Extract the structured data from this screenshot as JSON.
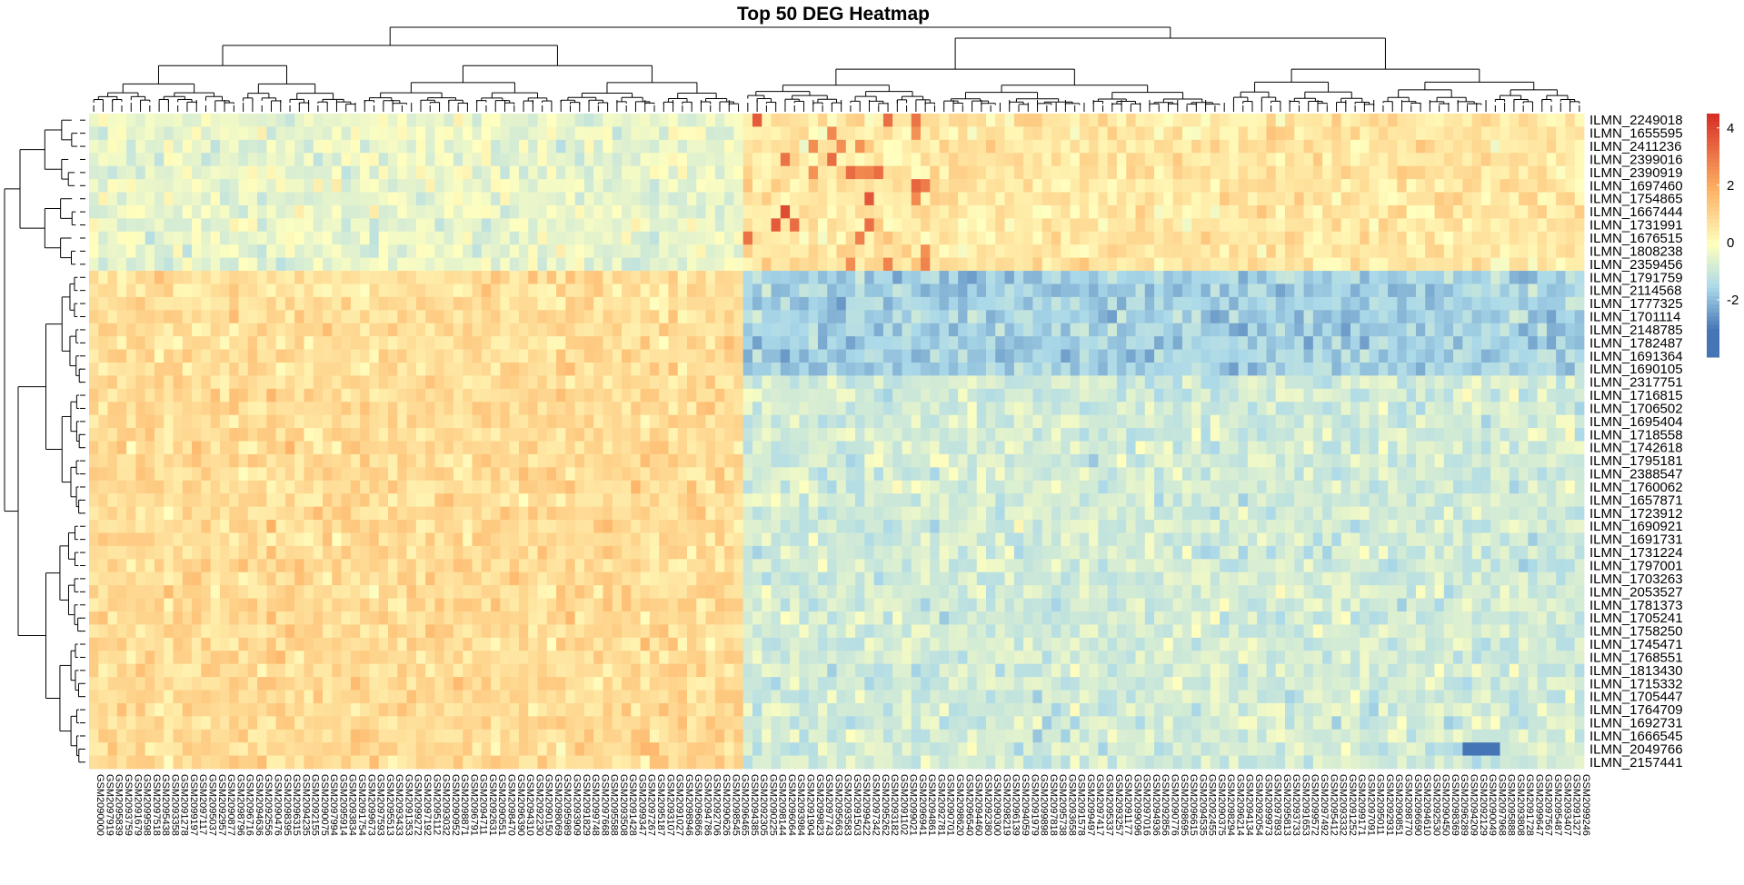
{
  "chart_data": {
    "type": "heatmap",
    "title": "Top 50 DEG Heatmap",
    "rows": [
      "ILMN_2249018",
      "ILMN_1655595",
      "ILMN_2411236",
      "ILMN_2399016",
      "ILMN_2390919",
      "ILMN_1697460",
      "ILMN_1754865",
      "ILMN_1667444",
      "ILMN_1731991",
      "ILMN_1676515",
      "ILMN_1808238",
      "ILMN_2359456",
      "ILMN_1791759",
      "ILMN_2114568",
      "ILMN_1777325",
      "ILMN_1701114",
      "ILMN_2148785",
      "ILMN_1782487",
      "ILMN_1691364",
      "ILMN_1690105",
      "ILMN_2317751",
      "ILMN_1716815",
      "ILMN_1706502",
      "ILMN_1695404",
      "ILMN_1718558",
      "ILMN_1742618",
      "ILMN_1795181",
      "ILMN_2388547",
      "ILMN_1760062",
      "ILMN_1657871",
      "ILMN_1723912",
      "ILMN_1690921",
      "ILMN_1691731",
      "ILMN_1731224",
      "ILMN_1797001",
      "ILMN_1703263",
      "ILMN_2053527",
      "ILMN_1781373",
      "ILMN_1705241",
      "ILMN_1758250",
      "ILMN_1745471",
      "ILMN_1768551",
      "ILMN_1813430",
      "ILMN_1715332",
      "ILMN_1705447",
      "ILMN_1764709",
      "ILMN_1692731",
      "ILMN_1666545",
      "ILMN_2049766",
      "ILMN_2157441"
    ],
    "column_count": 160,
    "column_label_prefix": "GSM",
    "groups": [
      {
        "columns": [
          0,
          70
        ],
        "block_values": [
          -0.4,
          0.8,
          0.9
        ]
      },
      {
        "columns": [
          70,
          160
        ],
        "block_values": [
          0.6,
          -1.6,
          -0.8
        ]
      }
    ],
    "row_blocks": [
      {
        "rows": [
          0,
          12
        ],
        "pattern": "mixed, elevated in right cluster"
      },
      {
        "rows": [
          12,
          20
        ],
        "pattern": "up-left / down-right"
      },
      {
        "rows": [
          20,
          50
        ],
        "pattern": "up-left / down-right (milder)"
      }
    ],
    "color_scale": {
      "min": -4,
      "max": 4.5,
      "stops": [
        {
          "value": -3,
          "color": "#4575b4"
        },
        {
          "value": -1.5,
          "color": "#abd9e9"
        },
        {
          "value": 0,
          "color": "#ffffbf"
        },
        {
          "value": 2,
          "color": "#fdae61"
        },
        {
          "value": 4.5,
          "color": "#d73027"
        }
      ],
      "ticks": [
        "4",
        "2",
        "0",
        "-2"
      ]
    },
    "dendrograms": {
      "rows": true,
      "columns": true
    },
    "legend": "right"
  }
}
